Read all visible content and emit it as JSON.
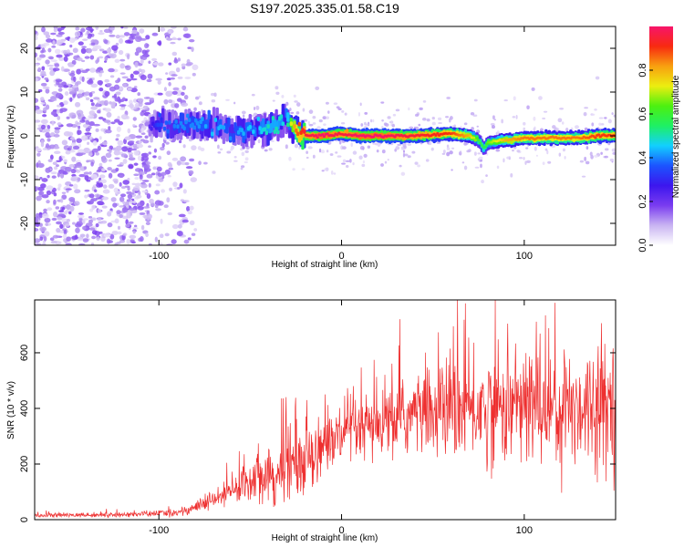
{
  "title": "S197.2025.335.01.58.C19",
  "chart_data": [
    {
      "type": "heatmap",
      "title": "",
      "xlabel": "Height of straight line (km)",
      "ylabel": "Frequency (Hz)",
      "xlim": [
        -168,
        150
      ],
      "ylim": [
        -25,
        25
      ],
      "xticks": [
        -100,
        0,
        100
      ],
      "yticks": [
        -20,
        -10,
        0,
        10,
        20
      ],
      "colorbar": {
        "label": "Normalized spectral amplitude",
        "range": [
          0,
          1
        ],
        "ticks": [
          "0.0",
          "0.2",
          "0.4",
          "0.6",
          "0.8"
        ],
        "tick_values": [
          0.0,
          0.2,
          0.4,
          0.6,
          0.8
        ],
        "colors": [
          "#ffffff",
          "#c9b4f2",
          "#7a3cf0",
          "#3c16ee",
          "#1c54ff",
          "#12d0ff",
          "#1ef064",
          "#4cf010",
          "#ecee10",
          "#f8a010",
          "#f82a10",
          "#f7146a"
        ]
      },
      "ridge": {
        "x": [
          -168,
          -110,
          -100,
          -90,
          -80,
          -70,
          -60,
          -50,
          -45,
          -40,
          -35,
          -30,
          -28,
          -25,
          -20,
          -10,
          0,
          10,
          20,
          40,
          60,
          70,
          75,
          78,
          80,
          90,
          100,
          110,
          120,
          130,
          140,
          150
        ],
        "y": [
          0,
          0,
          3,
          2,
          3,
          2,
          1,
          1,
          2,
          1,
          3,
          4,
          2,
          1,
          0,
          0,
          0.5,
          0,
          0,
          0,
          0.5,
          0,
          -1,
          -3,
          -1.5,
          -1,
          -0.5,
          -0.5,
          -0.5,
          -0.5,
          0,
          0
        ],
        "amplitude": [
          0.05,
          0.1,
          0.35,
          0.4,
          0.4,
          0.45,
          0.4,
          0.45,
          0.45,
          0.5,
          0.5,
          0.45,
          0.7,
          0.85,
          0.95,
          1.0,
          0.95,
          1.0,
          1.0,
          0.95,
          0.9,
          0.8,
          0.6,
          0.55,
          0.65,
          0.8,
          0.85,
          0.85,
          0.85,
          0.85,
          0.9,
          0.9
        ]
      },
      "noise_region": {
        "x_range": [
          -168,
          -80
        ],
        "y_range": [
          -25,
          25
        ],
        "amplitude": 0.1
      }
    },
    {
      "type": "line",
      "title": "",
      "xlabel": "Height of straight line (km)",
      "ylabel": "SNR (10 * v/v)",
      "xlim": [
        -168,
        150
      ],
      "ylim": [
        0,
        790
      ],
      "xticks": [
        -100,
        0,
        100
      ],
      "yticks": [
        0,
        200,
        400,
        600
      ],
      "series": [
        {
          "name": "SNR",
          "color": "#ee2f2f",
          "envelope_x": [
            -168,
            -120,
            -90,
            -80,
            -70,
            -60,
            -50,
            -40,
            -35,
            -30,
            -25,
            -20,
            -10,
            0,
            10,
            20,
            30,
            40,
            50,
            60,
            70,
            80,
            90,
            100,
            110,
            120,
            130,
            140,
            150
          ],
          "envelope_mean": [
            15,
            18,
            25,
            45,
            70,
            100,
            150,
            180,
            140,
            220,
            180,
            230,
            270,
            300,
            320,
            330,
            360,
            380,
            390,
            400,
            395,
            400,
            410,
            405,
            420,
            400,
            410,
            420,
            430
          ],
          "envelope_spread": [
            8,
            10,
            15,
            25,
            40,
            60,
            90,
            120,
            110,
            150,
            130,
            140,
            130,
            130,
            130,
            140,
            150,
            160,
            180,
            200,
            210,
            220,
            230,
            250,
            260,
            250,
            240,
            240,
            240
          ]
        }
      ]
    }
  ]
}
